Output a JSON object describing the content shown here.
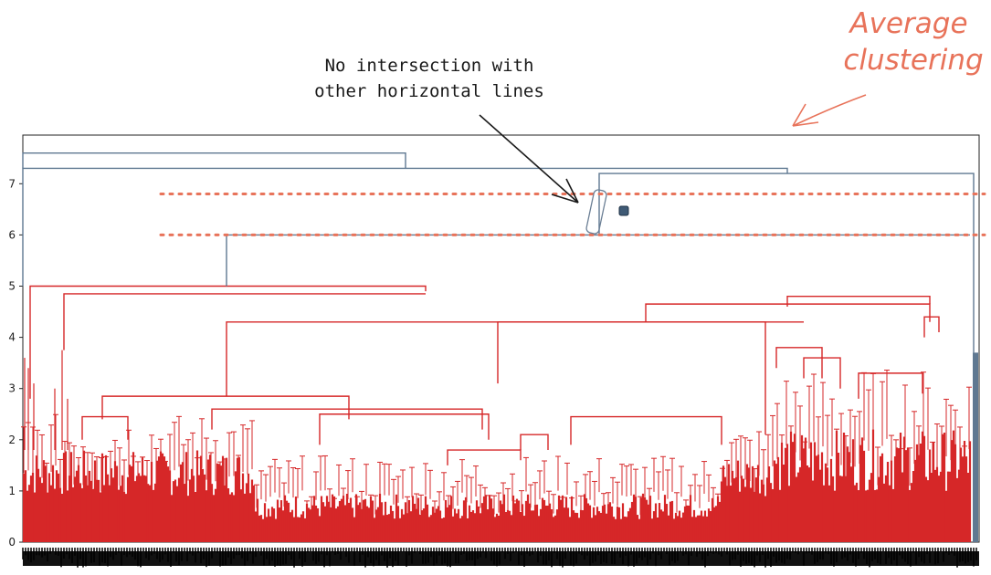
{
  "chart_data": {
    "type": "dendrogram",
    "title": "",
    "xlabel": "",
    "ylabel": "",
    "ylim": [
      0,
      8
    ],
    "yticks": [
      0,
      1,
      2,
      3,
      4,
      5,
      6,
      7
    ],
    "cluster_colors": {
      "low": "#d62728",
      "high": "#5f7891"
    },
    "leaf_label_band": "dense unreadable leaf labels below x-axis",
    "threshold_lines": [
      {
        "y": 6.0,
        "style": "dotted",
        "color": "#e8735a"
      },
      {
        "y": 6.8,
        "style": "dotted",
        "color": "#e8735a"
      }
    ],
    "top_merges": [
      {
        "height": 7.6,
        "color": "#5f7891"
      },
      {
        "height": 7.3,
        "color": "#5f7891"
      },
      {
        "height": 7.2,
        "color": "#5f7891"
      },
      {
        "height": 6.0,
        "color": "#5f7891"
      },
      {
        "height": 5.0,
        "color": "#d62728"
      },
      {
        "height": 4.8,
        "color": "#d62728"
      },
      {
        "height": 4.6,
        "color": "#d62728"
      },
      {
        "height": 4.3,
        "color": "#d62728"
      },
      {
        "height": 3.8,
        "color": "#d62728"
      },
      {
        "height": 2.8,
        "color": "#d62728"
      }
    ],
    "annotations": [
      {
        "text_lines": [
          "No intersection with",
          "other horizontal lines"
        ],
        "target_height": 6.4
      },
      {
        "text_lines": [
          "Average",
          "clustering"
        ],
        "color": "#e8735a"
      }
    ]
  }
}
